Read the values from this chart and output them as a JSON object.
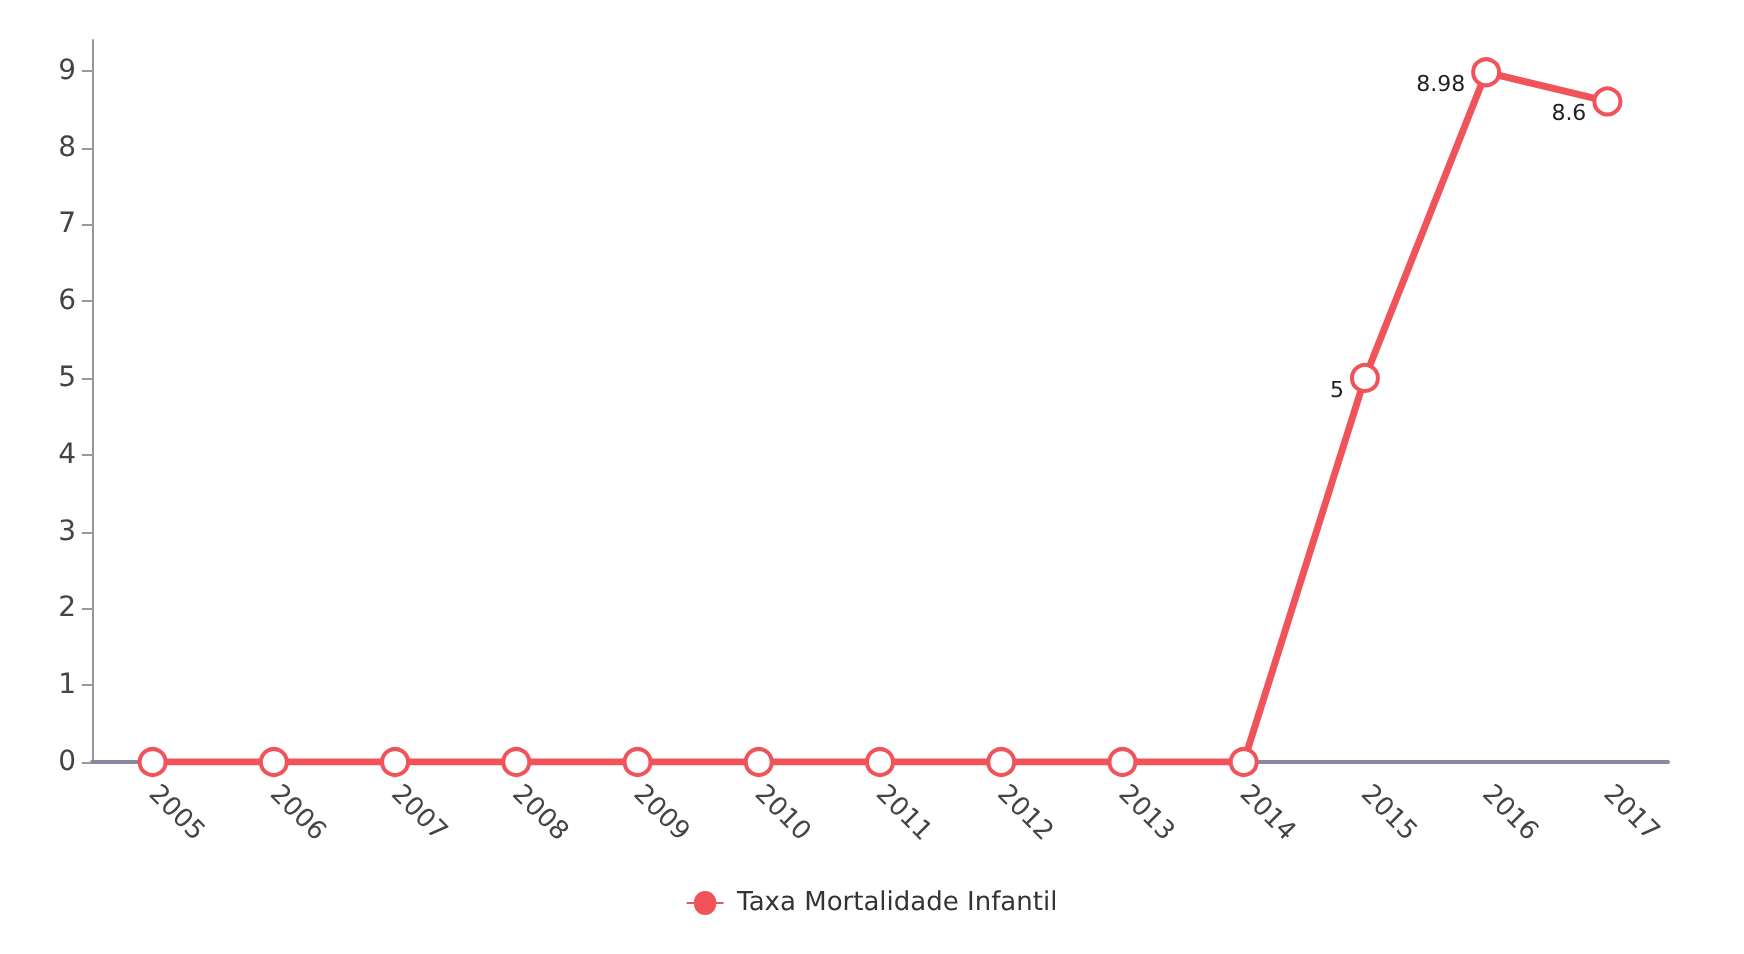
{
  "chart_data": {
    "type": "line",
    "categories": [
      "2005",
      "2006",
      "2007",
      "2008",
      "2009",
      "2010",
      "2011",
      "2012",
      "2013",
      "2014",
      "2015",
      "2016",
      "2017"
    ],
    "series": [
      {
        "name": "Taxa Mortalidade Infantil",
        "color": "#f0535a",
        "values": [
          0,
          0,
          0,
          0,
          0,
          0,
          0,
          0,
          0,
          0,
          5,
          8.98,
          8.6
        ],
        "value_labels": [
          null,
          null,
          null,
          null,
          null,
          null,
          null,
          null,
          null,
          null,
          "5",
          "8.98",
          "8.6"
        ]
      }
    ],
    "ylim": [
      0,
      9.4
    ],
    "yticks": [
      0,
      1,
      2,
      3,
      4,
      5,
      6,
      7,
      8,
      9
    ],
    "grid": false,
    "legend": "bottom",
    "marker": "circle",
    "line_style": "solid"
  }
}
